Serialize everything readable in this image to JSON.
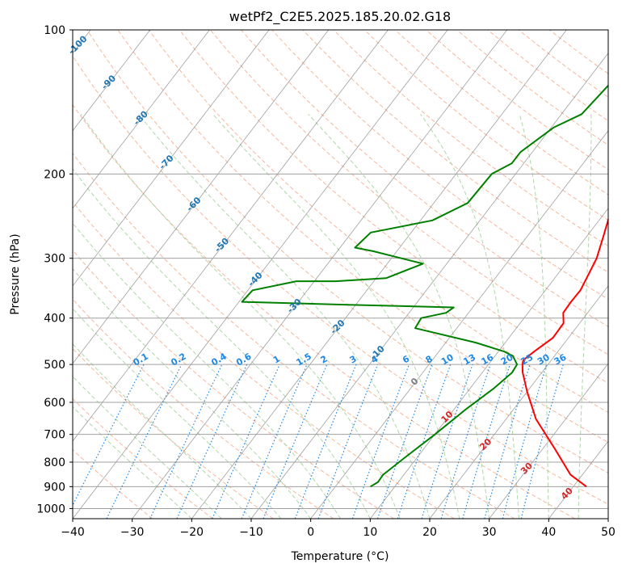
{
  "chart_data": {
    "type": "line",
    "title": "wetPf2_C2E5.2025.185.20.02.G18",
    "xlabel": "Temperature (°C)",
    "ylabel": "Pressure (hPa)",
    "xlim": [
      -40,
      50
    ],
    "ylim": [
      1050,
      100
    ],
    "y_scale": "log",
    "x_ticks": [
      -40,
      -30,
      -20,
      -10,
      0,
      10,
      20,
      30,
      40,
      50
    ],
    "x_tick_labels": [
      "−40",
      "−30",
      "−20",
      "−10",
      "0",
      "10",
      "20",
      "30",
      "40",
      "50"
    ],
    "y_ticks": [
      100,
      200,
      300,
      400,
      500,
      600,
      700,
      800,
      900,
      1000
    ],
    "y_tick_labels": [
      "100",
      "200",
      "300",
      "400",
      "500",
      "600",
      "700",
      "800",
      "900",
      "1000"
    ],
    "grid": true,
    "series": [
      {
        "color": "#ff0000",
        "x": [
          42.2,
          38,
          32,
          25,
          20,
          16.8,
          15.7,
          15.3,
          16,
          17.4,
          17.3,
          15.9,
          15.8,
          15.9,
          14.5,
          12.8,
          9.4,
          6.7,
          4.8,
          4.0,
          3.7,
          3.6,
          3.5,
          3.8,
          5.4,
          6.5
        ],
        "y": [
          900,
          850,
          750,
          650,
          570,
          520,
          500,
          490,
          470,
          440,
          410,
          390,
          370,
          350,
          300,
          270,
          220,
          200,
          180,
          160,
          140,
          130,
          120,
          110,
          104,
          100
        ]
      },
      {
        "color": "#008000",
        "x": [
          5.9,
          6.6,
          6.5,
          8,
          10,
          12,
          14,
          15,
          14.8,
          13,
          11,
          5,
          -7,
          -7.3,
          -3.8,
          -3.2,
          -22,
          -39.5,
          -39.2,
          -33,
          -26.4,
          -18.3,
          -14,
          -24,
          -27.5,
          -26.8,
          -18,
          -14.3,
          -14,
          -12,
          -12,
          -9.6,
          -6.6,
          -5.8,
          -3,
          0,
          1.5
        ],
        "y": [
          900,
          880,
          850,
          780,
          700,
          620,
          560,
          520,
          500,
          480,
          470,
          450,
          420,
          400,
          390,
          380,
          375,
          370,
          350,
          335,
          335,
          330,
          308,
          290,
          285,
          265,
          250,
          230,
          200,
          190,
          180,
          160,
          150,
          130,
          120,
          110,
          106
        ]
      }
    ],
    "moisture_labels": [
      "0.1",
      "0.2",
      "0.4",
      "0.6",
      "1",
      "1.5",
      "2",
      "3",
      "4",
      "6",
      "8",
      "10",
      "13",
      "16",
      "20",
      "25",
      "30",
      "36"
    ],
    "dry_adiabat_labels": [
      "-100",
      "-90",
      "-80",
      "-70",
      "-60",
      "-50",
      "-40",
      "-30",
      "-20",
      "-10",
      "0",
      "10",
      "20",
      "30",
      "40"
    ],
    "colors": {
      "temperature": "#ff0000",
      "dewpoint": "#008000",
      "isotherm": "#808080",
      "isobar": "#a0a0a0",
      "dry_adiabat": "#f4a582",
      "moist_adiabat": "#a6d3a0",
      "mixing_ratio": "#1e88e5",
      "label_blue": "#1f77b4",
      "label_red": "#d62728"
    }
  }
}
